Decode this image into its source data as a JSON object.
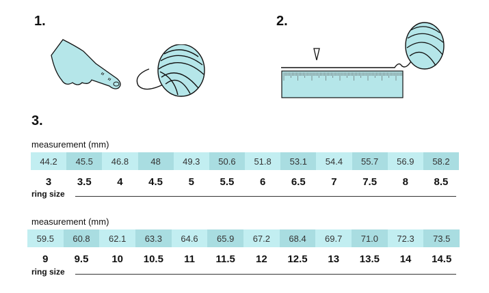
{
  "steps": [
    "1.",
    "2.",
    "3."
  ],
  "tables": [
    {
      "measurement_label": "measurement (mm)",
      "measurements": [
        "44.2",
        "45.5",
        "46.8",
        "48",
        "49.3",
        "50.6",
        "51.8",
        "53.1",
        "54.4",
        "55.7",
        "56.9",
        "58.2"
      ],
      "sizes": [
        "3",
        "3.5",
        "4",
        "4.5",
        "5",
        "5.5",
        "6",
        "6.5",
        "7",
        "7.5",
        "8",
        "8.5"
      ],
      "ring_size_label": "ring size"
    },
    {
      "measurement_label": "measurement (mm)",
      "measurements": [
        "59.5",
        "60.8",
        "62.1",
        "63.3",
        "64.6",
        "65.9",
        "67.2",
        "68.4",
        "69.7",
        "71.0",
        "72.3",
        "73.5"
      ],
      "sizes": [
        "9",
        "9.5",
        "10",
        "10.5",
        "11",
        "11.5",
        "12",
        "12.5",
        "13",
        "13.5",
        "14",
        "14.5"
      ],
      "ring_size_label": "ring size"
    }
  ],
  "colors": {
    "cell_light": "#c2eef1",
    "cell_dark": "#a9dde1",
    "illustration_fill": "#b5e6e9"
  }
}
